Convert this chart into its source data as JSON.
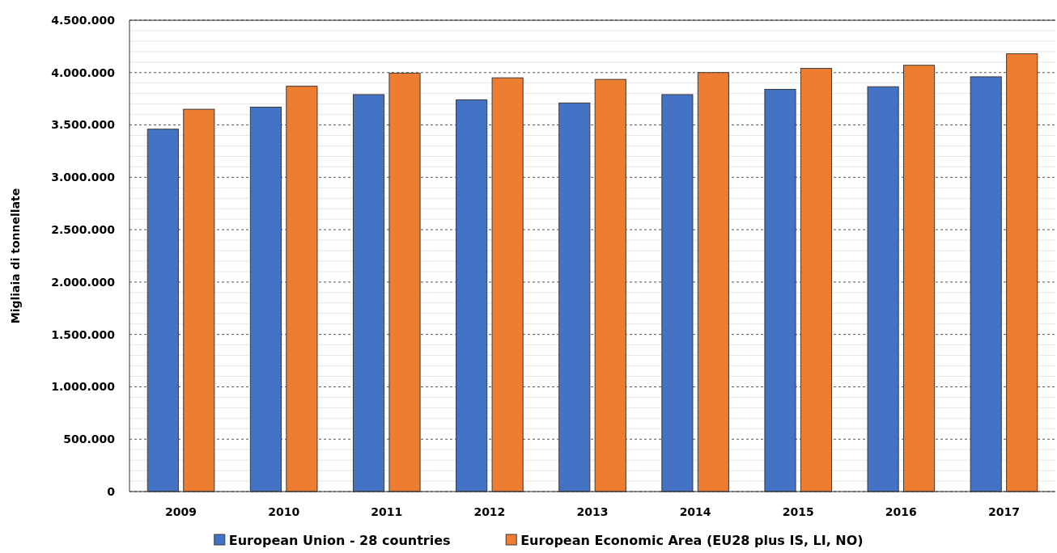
{
  "chart_data": {
    "type": "bar",
    "ylabel": "Migliaia di tonnellate",
    "categories": [
      "2009",
      "2010",
      "2011",
      "2012",
      "2013",
      "2014",
      "2015",
      "2016",
      "2017"
    ],
    "series": [
      {
        "name": "European Union - 28 countries",
        "color": "#4472c4",
        "values": [
          3460000,
          3670000,
          3790000,
          3740000,
          3710000,
          3790000,
          3840000,
          3865000,
          3960000
        ]
      },
      {
        "name": "European Economic Area (EU28 plus IS, LI, NO)",
        "color": "#ed7d31",
        "values": [
          3650000,
          3870000,
          3995000,
          3950000,
          3935000,
          4000000,
          4040000,
          4070000,
          4180000
        ]
      }
    ],
    "ylim": [
      0,
      4500000
    ],
    "yticks": [
      {
        "value": 0,
        "label": "0"
      },
      {
        "value": 100000,
        "label": null
      },
      {
        "value": 200000,
        "label": null
      },
      {
        "value": 300000,
        "label": null
      },
      {
        "value": 400000,
        "label": null
      },
      {
        "value": 500000,
        "label": "500.000"
      },
      {
        "value": 600000,
        "label": null
      },
      {
        "value": 700000,
        "label": null
      },
      {
        "value": 800000,
        "label": null
      },
      {
        "value": 900000,
        "label": null
      },
      {
        "value": 1000000,
        "label": "1.000.000"
      },
      {
        "value": 1100000,
        "label": null
      },
      {
        "value": 1200000,
        "label": null
      },
      {
        "value": 1300000,
        "label": null
      },
      {
        "value": 1400000,
        "label": null
      },
      {
        "value": 1500000,
        "label": "1.500.000"
      },
      {
        "value": 1600000,
        "label": null
      },
      {
        "value": 1700000,
        "label": null
      },
      {
        "value": 1800000,
        "label": null
      },
      {
        "value": 1900000,
        "label": null
      },
      {
        "value": 2000000,
        "label": "2.000.000"
      },
      {
        "value": 2100000,
        "label": null
      },
      {
        "value": 2200000,
        "label": null
      },
      {
        "value": 2300000,
        "label": null
      },
      {
        "value": 2400000,
        "label": null
      },
      {
        "value": 2500000,
        "label": "2.500.000"
      },
      {
        "value": 2600000,
        "label": null
      },
      {
        "value": 2700000,
        "label": null
      },
      {
        "value": 2800000,
        "label": null
      },
      {
        "value": 2900000,
        "label": null
      },
      {
        "value": 3000000,
        "label": "3.000.000"
      },
      {
        "value": 3100000,
        "label": null
      },
      {
        "value": 3200000,
        "label": null
      },
      {
        "value": 3300000,
        "label": null
      },
      {
        "value": 3400000,
        "label": null
      },
      {
        "value": 3500000,
        "label": "3.500.000"
      },
      {
        "value": 3600000,
        "label": null
      },
      {
        "value": 3700000,
        "label": null
      },
      {
        "value": 3800000,
        "label": null
      },
      {
        "value": 3900000,
        "label": null
      },
      {
        "value": 4000000,
        "label": "4.000.000"
      },
      {
        "value": 4100000,
        "label": null
      },
      {
        "value": 4200000,
        "label": null
      },
      {
        "value": 4300000,
        "label": null
      },
      {
        "value": 4400000,
        "label": null
      },
      {
        "value": 4500000,
        "label": "4.500.000"
      }
    ],
    "grid": "y",
    "legend": "bottom"
  }
}
